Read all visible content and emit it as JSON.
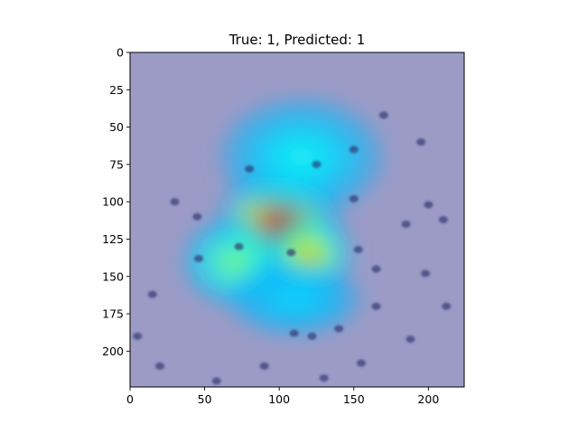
{
  "chart_data": {
    "type": "heatmap",
    "title": "True: 1, Predicted: 1",
    "xlabel": "",
    "ylabel": "",
    "xlim": [
      0,
      224
    ],
    "ylim": [
      224,
      0
    ],
    "x_ticks": [
      0,
      50,
      100,
      150,
      200
    ],
    "y_ticks": [
      0,
      25,
      50,
      75,
      100,
      125,
      150,
      175,
      200
    ],
    "grid": false,
    "legend": "none",
    "colormap": "jet",
    "overlay": "Grad-CAM activation heatmap over a cell microscopy image",
    "background_color": "#9b9bc6",
    "hotspots": [
      {
        "x": 100,
        "y": 115,
        "rx": 42,
        "ry": 38,
        "intensity": 1.0
      },
      {
        "x": 120,
        "y": 135,
        "rx": 30,
        "ry": 26,
        "intensity": 0.75
      },
      {
        "x": 70,
        "y": 140,
        "rx": 35,
        "ry": 30,
        "intensity": 0.55
      },
      {
        "x": 115,
        "y": 70,
        "rx": 55,
        "ry": 40,
        "intensity": 0.4
      },
      {
        "x": 110,
        "y": 165,
        "rx": 45,
        "ry": 25,
        "intensity": 0.35
      }
    ],
    "nuclei": [
      {
        "x": 80,
        "y": 78
      },
      {
        "x": 125,
        "y": 75
      },
      {
        "x": 108,
        "y": 134
      },
      {
        "x": 46,
        "y": 138
      },
      {
        "x": 165,
        "y": 145
      },
      {
        "x": 15,
        "y": 162
      },
      {
        "x": 73,
        "y": 130
      },
      {
        "x": 198,
        "y": 148
      },
      {
        "x": 212,
        "y": 170
      },
      {
        "x": 200,
        "y": 102
      },
      {
        "x": 185,
        "y": 115
      },
      {
        "x": 150,
        "y": 98
      },
      {
        "x": 122,
        "y": 190
      },
      {
        "x": 140,
        "y": 185
      },
      {
        "x": 165,
        "y": 170
      },
      {
        "x": 195,
        "y": 60
      },
      {
        "x": 210,
        "y": 112
      },
      {
        "x": 5,
        "y": 190
      },
      {
        "x": 30,
        "y": 100
      },
      {
        "x": 45,
        "y": 110
      },
      {
        "x": 150,
        "y": 65
      },
      {
        "x": 170,
        "y": 42
      },
      {
        "x": 153,
        "y": 132
      },
      {
        "x": 188,
        "y": 192
      },
      {
        "x": 130,
        "y": 218
      },
      {
        "x": 90,
        "y": 210
      },
      {
        "x": 58,
        "y": 220
      },
      {
        "x": 20,
        "y": 210
      },
      {
        "x": 155,
        "y": 208
      },
      {
        "x": 110,
        "y": 188
      }
    ]
  }
}
